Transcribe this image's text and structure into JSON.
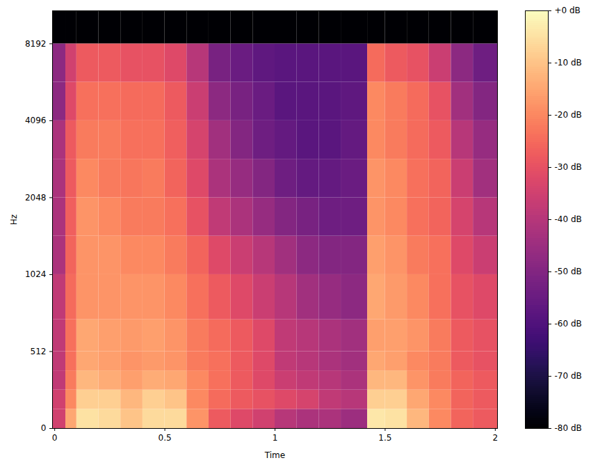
{
  "chart_data": {
    "type": "heatmap",
    "x_label": "Time",
    "y_label": "Hz",
    "log": "y",
    "color": "magma",
    "xlim": [
      -0.01,
      2.01
    ],
    "xticks": [
      0,
      0.5,
      1,
      1.5,
      2
    ],
    "ylim": [
      0,
      11025
    ],
    "yticks": [
      0,
      512,
      1024,
      2048,
      4096,
      8192
    ],
    "time_edges": [
      -0.01,
      0.05,
      0.1,
      0.2,
      0.3,
      0.4,
      0.5,
      0.6,
      0.7,
      0.8,
      0.9,
      1,
      1.1,
      1.2,
      1.3,
      1.42,
      1.5,
      1.6,
      1.7,
      1.8,
      1.9,
      2.01
    ],
    "freq_edges": [
      0,
      128,
      256,
      384,
      512,
      724,
      1024,
      1448,
      2048,
      2896,
      4096,
      5793,
      8192,
      11025
    ],
    "cells": [
      [
        -35,
        -15,
        -5,
        -6,
        -10,
        -6,
        -6,
        -18,
        -28,
        -32,
        -35,
        -40,
        -42,
        -42,
        -45,
        -4,
        -5,
        -12,
        -20,
        -26,
        -28
      ],
      [
        -35,
        -20,
        -8,
        -8,
        -12,
        -8,
        -10,
        -20,
        -25,
        -28,
        -30,
        -32,
        -34,
        -38,
        -40,
        -8,
        -8,
        -15,
        -20,
        -26,
        -28
      ],
      [
        -38,
        -22,
        -12,
        -14,
        -16,
        -14,
        -15,
        -20,
        -24,
        -28,
        -32,
        -36,
        -38,
        -40,
        -42,
        -12,
        -12,
        -18,
        -22,
        -26,
        -28
      ],
      [
        -38,
        -24,
        -15,
        -16,
        -18,
        -17,
        -18,
        -22,
        -24,
        -28,
        -32,
        -38,
        -40,
        -42,
        -44,
        -15,
        -16,
        -20,
        -22,
        -28,
        -30
      ],
      [
        -38,
        -24,
        -15,
        -16,
        -17,
        -16,
        -18,
        -22,
        -25,
        -28,
        -32,
        -38,
        -40,
        -42,
        -44,
        -16,
        -16,
        -18,
        -22,
        -28,
        -30
      ],
      [
        -38,
        -25,
        -18,
        -18,
        -18,
        -18,
        -20,
        -24,
        -28,
        -32,
        -36,
        -40,
        -44,
        -46,
        -48,
        -15,
        -17,
        -20,
        -24,
        -30,
        -32
      ],
      [
        -42,
        -26,
        -18,
        -18,
        -20,
        -20,
        -22,
        -26,
        -32,
        -36,
        -40,
        -44,
        -48,
        -50,
        -50,
        -16,
        -18,
        -22,
        -24,
        -32,
        -36
      ],
      [
        -42,
        -27,
        -18,
        -20,
        -22,
        -22,
        -24,
        -30,
        -38,
        -42,
        -46,
        -50,
        -52,
        -54,
        -54,
        -18,
        -20,
        -24,
        -26,
        -34,
        -40
      ],
      [
        -42,
        -28,
        -20,
        -22,
        -23,
        -22,
        -26,
        -32,
        -42,
        -46,
        -50,
        -54,
        -56,
        -56,
        -55,
        -18,
        -20,
        -24,
        -26,
        -36,
        -44
      ],
      [
        -42,
        -28,
        -22,
        -22,
        -24,
        -24,
        -27,
        -34,
        -44,
        -50,
        -54,
        -56,
        -58,
        -58,
        -56,
        -20,
        -22,
        -25,
        -28,
        -40,
        -46
      ],
      [
        -48,
        -32,
        -24,
        -24,
        -25,
        -25,
        -28,
        -36,
        -48,
        -52,
        -55,
        -58,
        -58,
        -58,
        -57,
        -20,
        -22,
        -25,
        -30,
        -44,
        -50
      ],
      [
        -48,
        -35,
        -28,
        -28,
        -30,
        -30,
        -32,
        -40,
        -52,
        -55,
        -57,
        -58,
        -58,
        -58,
        -58,
        -25,
        -28,
        -30,
        -36,
        -48,
        -54
      ],
      [
        -80,
        -80,
        -80,
        -80,
        -80,
        -80,
        -80,
        -80,
        -80,
        -80,
        -80,
        -80,
        -80,
        -80,
        -80,
        -80,
        -80,
        -80,
        -80,
        -80,
        -80
      ]
    ],
    "colorbar": {
      "range": [
        -80,
        0
      ],
      "ticks": [
        {
          "value": 0,
          "label": "+0 dB"
        },
        {
          "value": -10,
          "label": "-10 dB"
        },
        {
          "value": -20,
          "label": "-20 dB"
        },
        {
          "value": -30,
          "label": "-30 dB"
        },
        {
          "value": -40,
          "label": "-40 dB"
        },
        {
          "value": -50,
          "label": "-50 dB"
        },
        {
          "value": -60,
          "label": "-60 dB"
        },
        {
          "value": -70,
          "label": "-70 dB"
        },
        {
          "value": -80,
          "label": "-80 dB"
        }
      ]
    }
  }
}
